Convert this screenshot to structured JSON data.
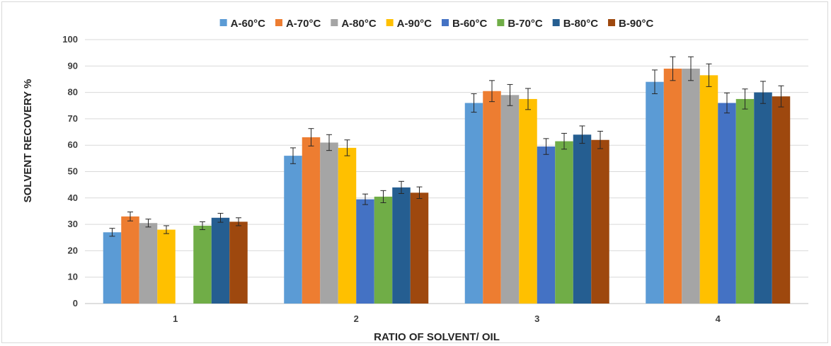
{
  "chart_data": {
    "type": "bar",
    "title": "",
    "xlabel": "RATIO OF SOLVENT/ OIL",
    "ylabel": "SOLVENT RECOVERY %",
    "ylim": [
      0,
      100
    ],
    "yticks": [
      "0",
      "10",
      "20",
      "30",
      "40",
      "50",
      "60",
      "70",
      "80",
      "90",
      "100"
    ],
    "grid": true,
    "legend_position": "top",
    "categories": [
      "1",
      "2",
      "3",
      "4"
    ],
    "series": [
      {
        "name": "A-60°C",
        "color": "#5b9bd5",
        "values": [
          27,
          56,
          76,
          84
        ],
        "errors": [
          1.5,
          3,
          3.5,
          4.5
        ]
      },
      {
        "name": "A-70°C",
        "color": "#ed7d31",
        "values": [
          33,
          63,
          80.5,
          89
        ],
        "errors": [
          1.7,
          3.3,
          4,
          4.5
        ]
      },
      {
        "name": "A-80°C",
        "color": "#a5a5a5",
        "values": [
          30.5,
          61,
          79,
          89
        ],
        "errors": [
          1.5,
          3,
          4,
          4.5
        ]
      },
      {
        "name": "A-90°C",
        "color": "#ffc000",
        "values": [
          28,
          59,
          77.5,
          86.5
        ],
        "errors": [
          1.5,
          3,
          4,
          4.3
        ]
      },
      {
        "name": "B-60°C",
        "color": "#4472c4",
        "values": [
          null,
          39.5,
          59.5,
          76
        ],
        "errors": [
          null,
          2,
          3,
          3.8
        ]
      },
      {
        "name": "B-70°C",
        "color": "#70ad47",
        "values": [
          29.5,
          40.5,
          61.5,
          77.5
        ],
        "errors": [
          1.5,
          2.3,
          3,
          3.8
        ]
      },
      {
        "name": "B-80°C",
        "color": "#255e91",
        "values": [
          32.5,
          44,
          64,
          80
        ],
        "errors": [
          1.7,
          2.3,
          3.3,
          4.2
        ]
      },
      {
        "name": "B-90°C",
        "color": "#9e480e",
        "values": [
          31,
          42,
          62,
          78.5
        ],
        "errors": [
          1.5,
          2.2,
          3.3,
          4
        ]
      }
    ]
  }
}
